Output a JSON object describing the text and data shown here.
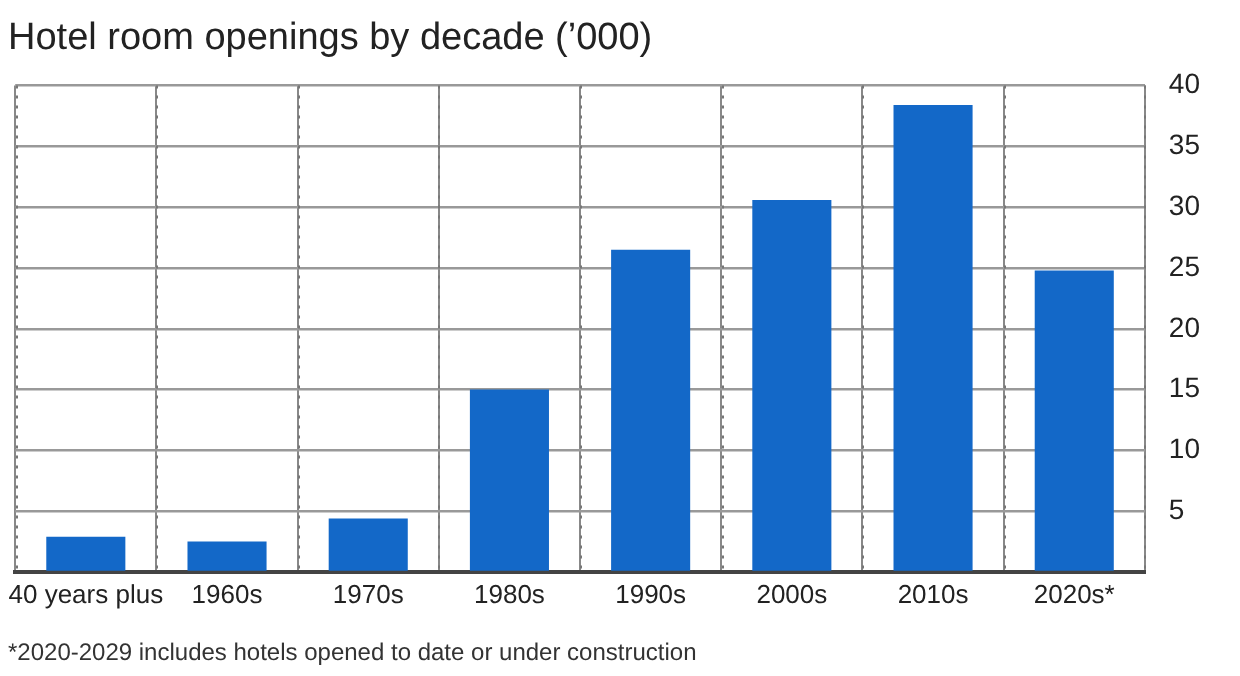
{
  "chart_data": {
    "type": "bar",
    "title": "Hotel room openings by decade (’000)",
    "categories": [
      "40 years plus",
      "1960s",
      "1970s",
      "1980s",
      "1990s",
      "2000s",
      "2010s",
      "2020s*"
    ],
    "values": [
      2.9,
      2.5,
      4.4,
      15,
      26.5,
      30.6,
      38.4,
      24.8
    ],
    "color": "#1368c8",
    "ylim": [
      0,
      40
    ],
    "yticks": [
      {
        "value": 0,
        "label": null
      },
      5,
      10,
      15,
      20,
      25,
      30,
      35,
      40
    ],
    "grid": true,
    "annotations": [
      "*2020-2029 includes hotels opened to date or under construction"
    ]
  }
}
